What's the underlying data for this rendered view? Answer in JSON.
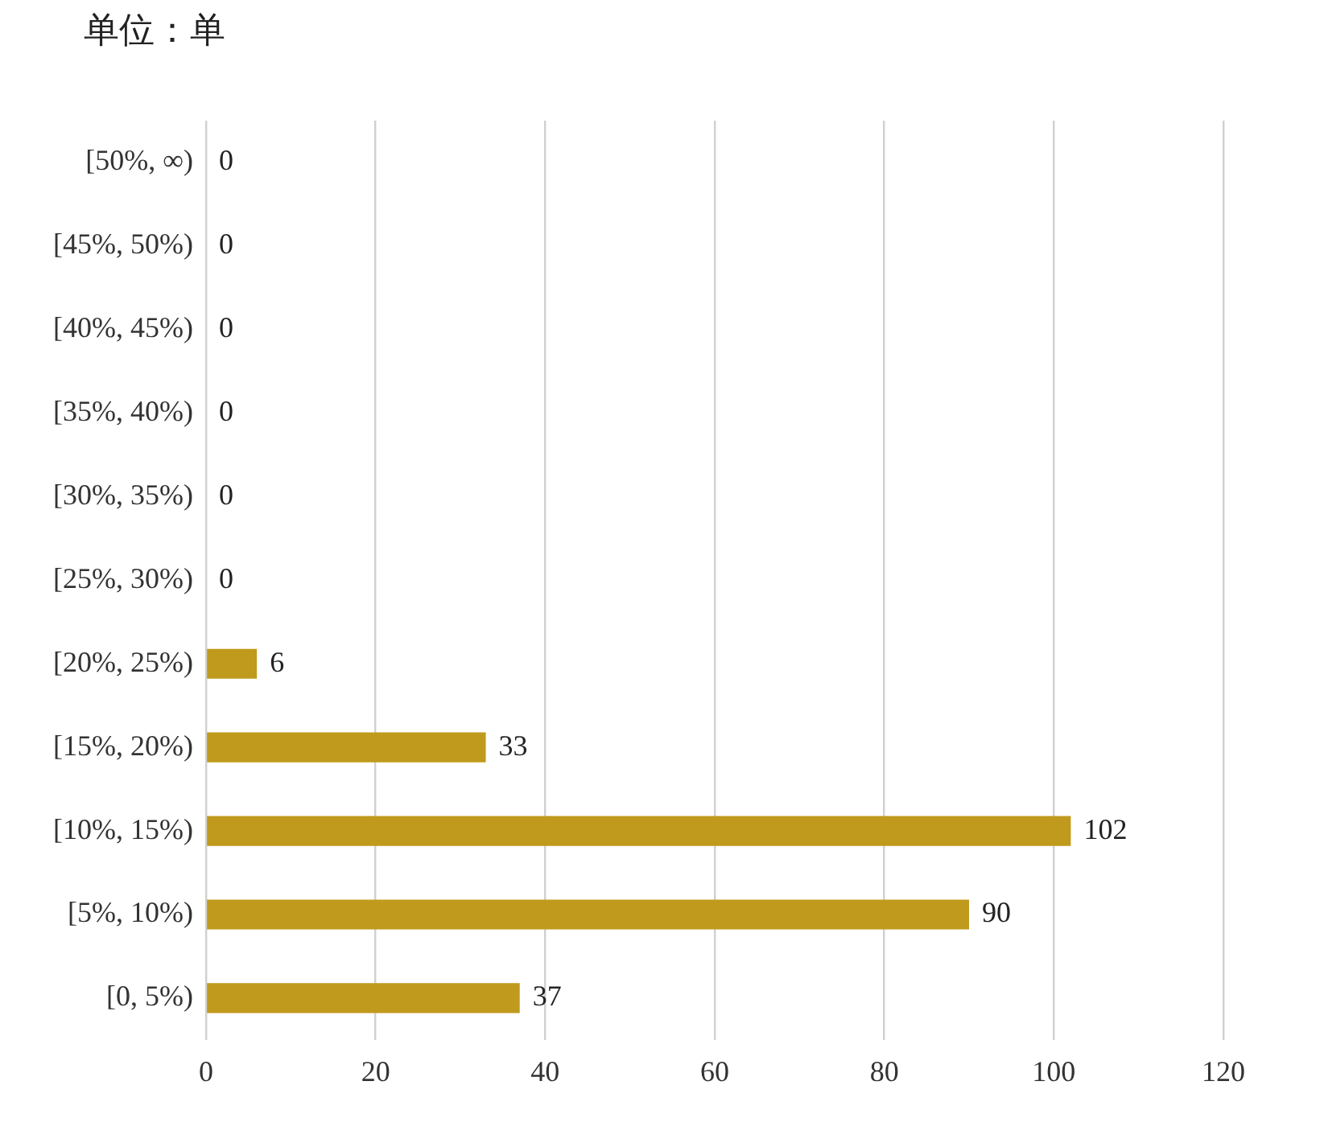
{
  "chart_data": {
    "type": "bar",
    "orientation": "horizontal",
    "title": "单位：单",
    "categories": [
      "[50%, ∞)",
      "[45%, 50%)",
      "[40%, 45%)",
      "[35%, 40%)",
      "[30%, 35%)",
      "[25%, 30%)",
      "[20%, 25%)",
      "[15%, 20%)",
      "[10%, 15%)",
      "[5%, 10%)",
      "[0, 5%)"
    ],
    "values": [
      0,
      0,
      0,
      0,
      0,
      0,
      6,
      33,
      102,
      90,
      37
    ],
    "color": "#c09a1c",
    "xlim": [
      0,
      120
    ],
    "xticks": [
      0,
      20,
      40,
      60,
      80,
      100,
      120
    ],
    "grid": "x",
    "legend": false,
    "data_labels": true
  }
}
